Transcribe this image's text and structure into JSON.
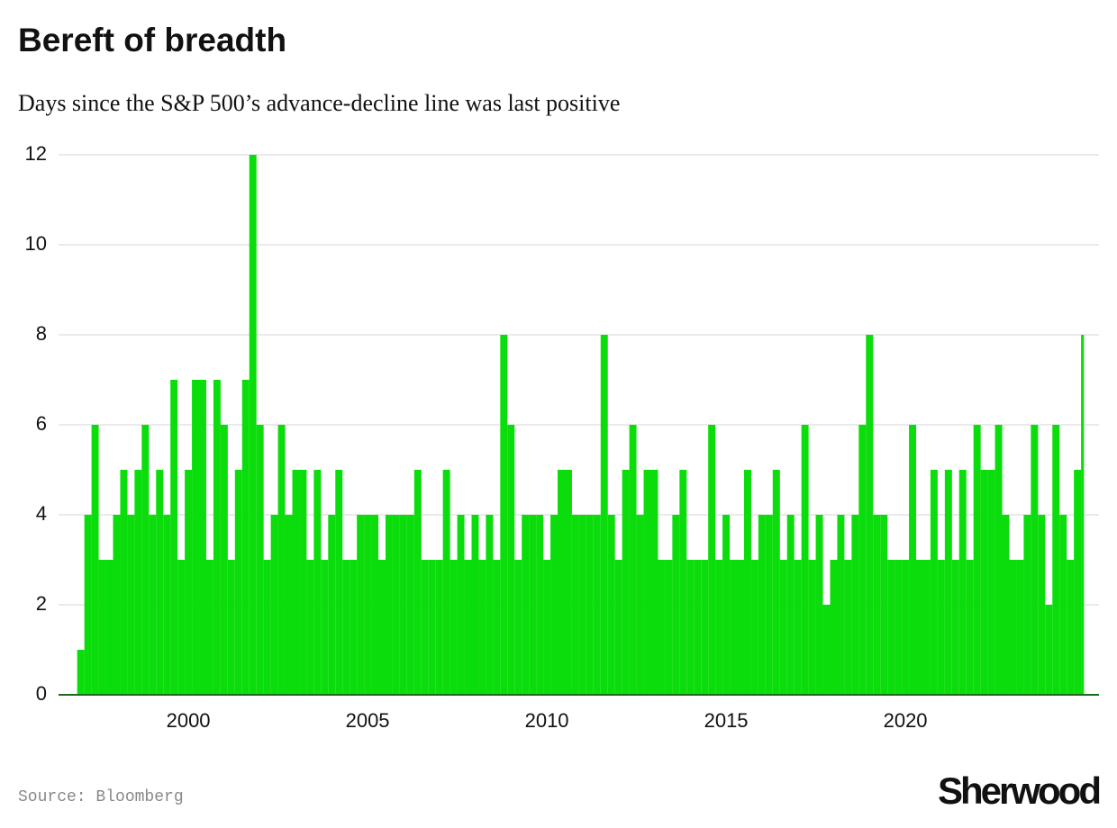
{
  "chart_data": {
    "type": "bar",
    "title": "Bereft of breadth",
    "subtitle": "Days since the S&P 500’s advance-decline line was last positive",
    "source": "Source: Bloomberg",
    "brand": "Sherwood",
    "color": "#0bdc0b",
    "grid": true,
    "xlim": [
      1996.38,
      2025.4
    ],
    "xticks": [
      2000,
      2005,
      2010,
      2015,
      2020
    ],
    "ylim": [
      0,
      12
    ],
    "yticks": [
      0,
      2,
      4,
      6,
      8,
      10,
      12
    ],
    "x": [
      1996.9,
      1997.1,
      1997.3,
      1997.5,
      1997.7,
      1997.9,
      1998.1,
      1998.3,
      1998.5,
      1998.7,
      1998.9,
      1999.1,
      1999.3,
      1999.5,
      1999.7,
      1999.9,
      2000.1,
      2000.3,
      2000.5,
      2000.7,
      2000.9,
      2001.1,
      2001.3,
      2001.5,
      2001.7,
      2001.9,
      2002.1,
      2002.3,
      2002.5,
      2002.7,
      2002.9,
      2003.1,
      2003.3,
      2003.5,
      2003.7,
      2003.9,
      2004.1,
      2004.3,
      2004.5,
      2004.7,
      2004.9,
      2005.1,
      2005.3,
      2005.5,
      2005.7,
      2005.9,
      2006.1,
      2006.3,
      2006.5,
      2006.7,
      2006.9,
      2007.1,
      2007.3,
      2007.5,
      2007.7,
      2007.9,
      2008.1,
      2008.3,
      2008.5,
      2008.7,
      2008.9,
      2009.1,
      2009.3,
      2009.5,
      2009.7,
      2009.9,
      2010.1,
      2010.3,
      2010.5,
      2010.7,
      2010.9,
      2011.1,
      2011.3,
      2011.5,
      2011.7,
      2011.9,
      2012.1,
      2012.3,
      2012.5,
      2012.7,
      2012.9,
      2013.1,
      2013.3,
      2013.5,
      2013.7,
      2013.9,
      2014.1,
      2014.3,
      2014.5,
      2014.7,
      2014.9,
      2015.1,
      2015.3,
      2015.5,
      2015.7,
      2015.9,
      2016.1,
      2016.3,
      2016.5,
      2016.7,
      2016.9,
      2017.1,
      2017.3,
      2017.5,
      2017.7,
      2017.9,
      2018.1,
      2018.3,
      2018.5,
      2018.7,
      2018.9,
      2019.1,
      2019.3,
      2019.5,
      2019.7,
      2019.9,
      2020.1,
      2020.3,
      2020.5,
      2020.7,
      2020.9,
      2021.1,
      2021.3,
      2021.5,
      2021.7,
      2021.9,
      2022.1,
      2022.3,
      2022.5,
      2022.7,
      2022.9,
      2023.1,
      2023.3,
      2023.5,
      2023.7,
      2023.9,
      2024.1,
      2024.3,
      2024.5,
      2024.7,
      2024.9
    ],
    "values": [
      1,
      4,
      6,
      3,
      3,
      4,
      5,
      4,
      5,
      6,
      4,
      5,
      4,
      7,
      3,
      5,
      7,
      7,
      3,
      7,
      6,
      3,
      5,
      7,
      12,
      6,
      3,
      4,
      6,
      4,
      5,
      5,
      3,
      5,
      3,
      4,
      5,
      3,
      3,
      4,
      4,
      4,
      3,
      4,
      4,
      4,
      4,
      5,
      3,
      3,
      3,
      5,
      3,
      4,
      3,
      4,
      3,
      4,
      3,
      8,
      6,
      3,
      4,
      4,
      4,
      3,
      4,
      5,
      5,
      4,
      4,
      4,
      4,
      8,
      4,
      3,
      5,
      6,
      4,
      5,
      5,
      3,
      3,
      4,
      5,
      3,
      3,
      3,
      6,
      3,
      4,
      3,
      3,
      5,
      3,
      4,
      4,
      5,
      3,
      4,
      3,
      6,
      3,
      4,
      2,
      3,
      4,
      3,
      4,
      6,
      8,
      4,
      4,
      3,
      3,
      3,
      6,
      3,
      3,
      5,
      3,
      5,
      3,
      5,
      3,
      6,
      5,
      5,
      6,
      4,
      3,
      3,
      4,
      6,
      4,
      2,
      6,
      4,
      3,
      5,
      8
    ]
  }
}
